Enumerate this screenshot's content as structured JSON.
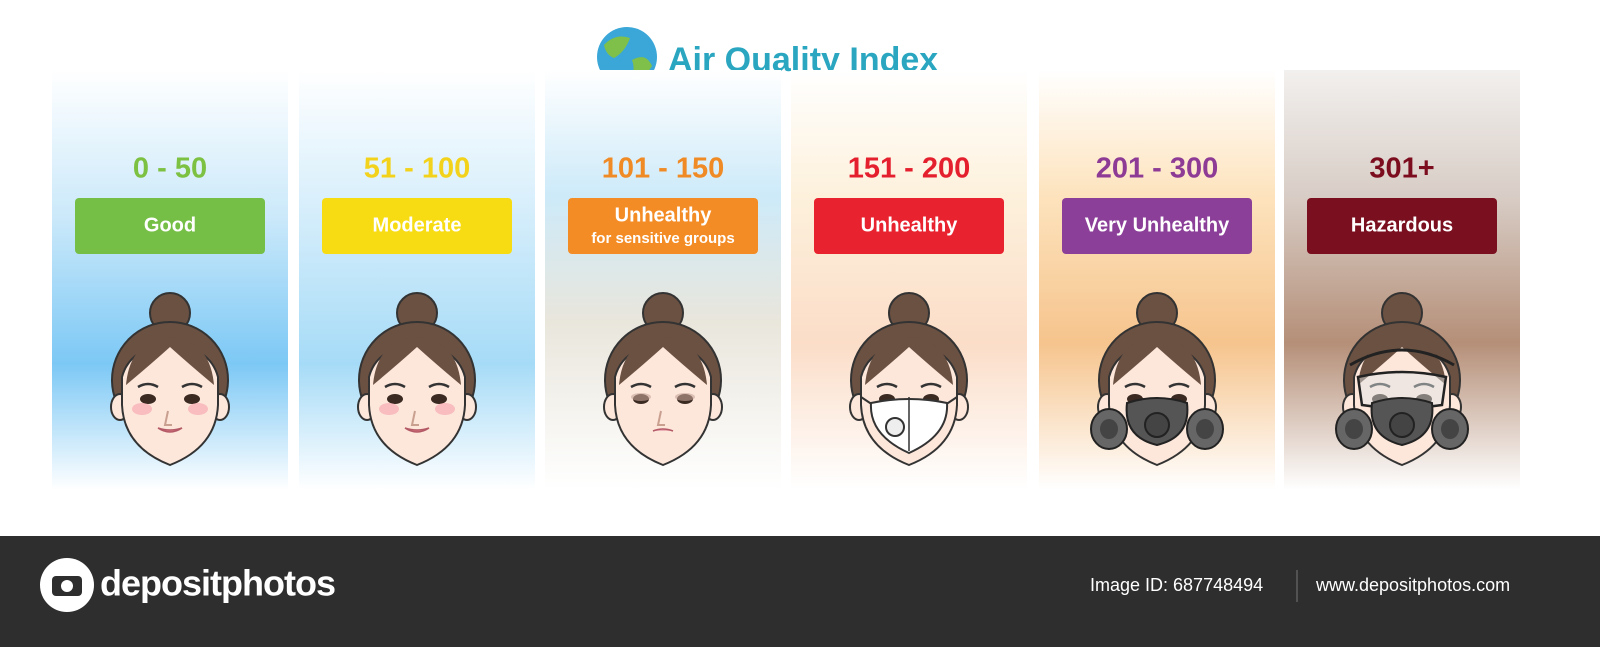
{
  "header": {
    "title": "Air Quality Index"
  },
  "levels": [
    {
      "range": "0 - 50",
      "label": "Good"
    },
    {
      "range": "51 - 100",
      "label": "Moderate"
    },
    {
      "range": "101 - 150",
      "label": "Unhealthy",
      "note": "for sensitive groups"
    },
    {
      "range": "151 - 200",
      "label": "Unhealthy"
    },
    {
      "range": "201 - 300",
      "label": "Very Unhealthy"
    },
    {
      "range": "301+",
      "label": "Hazardous"
    }
  ],
  "footer": {
    "brand": "depositphotos",
    "image_id": "Image ID: 687748494",
    "url": "www.depositphotos.com"
  }
}
